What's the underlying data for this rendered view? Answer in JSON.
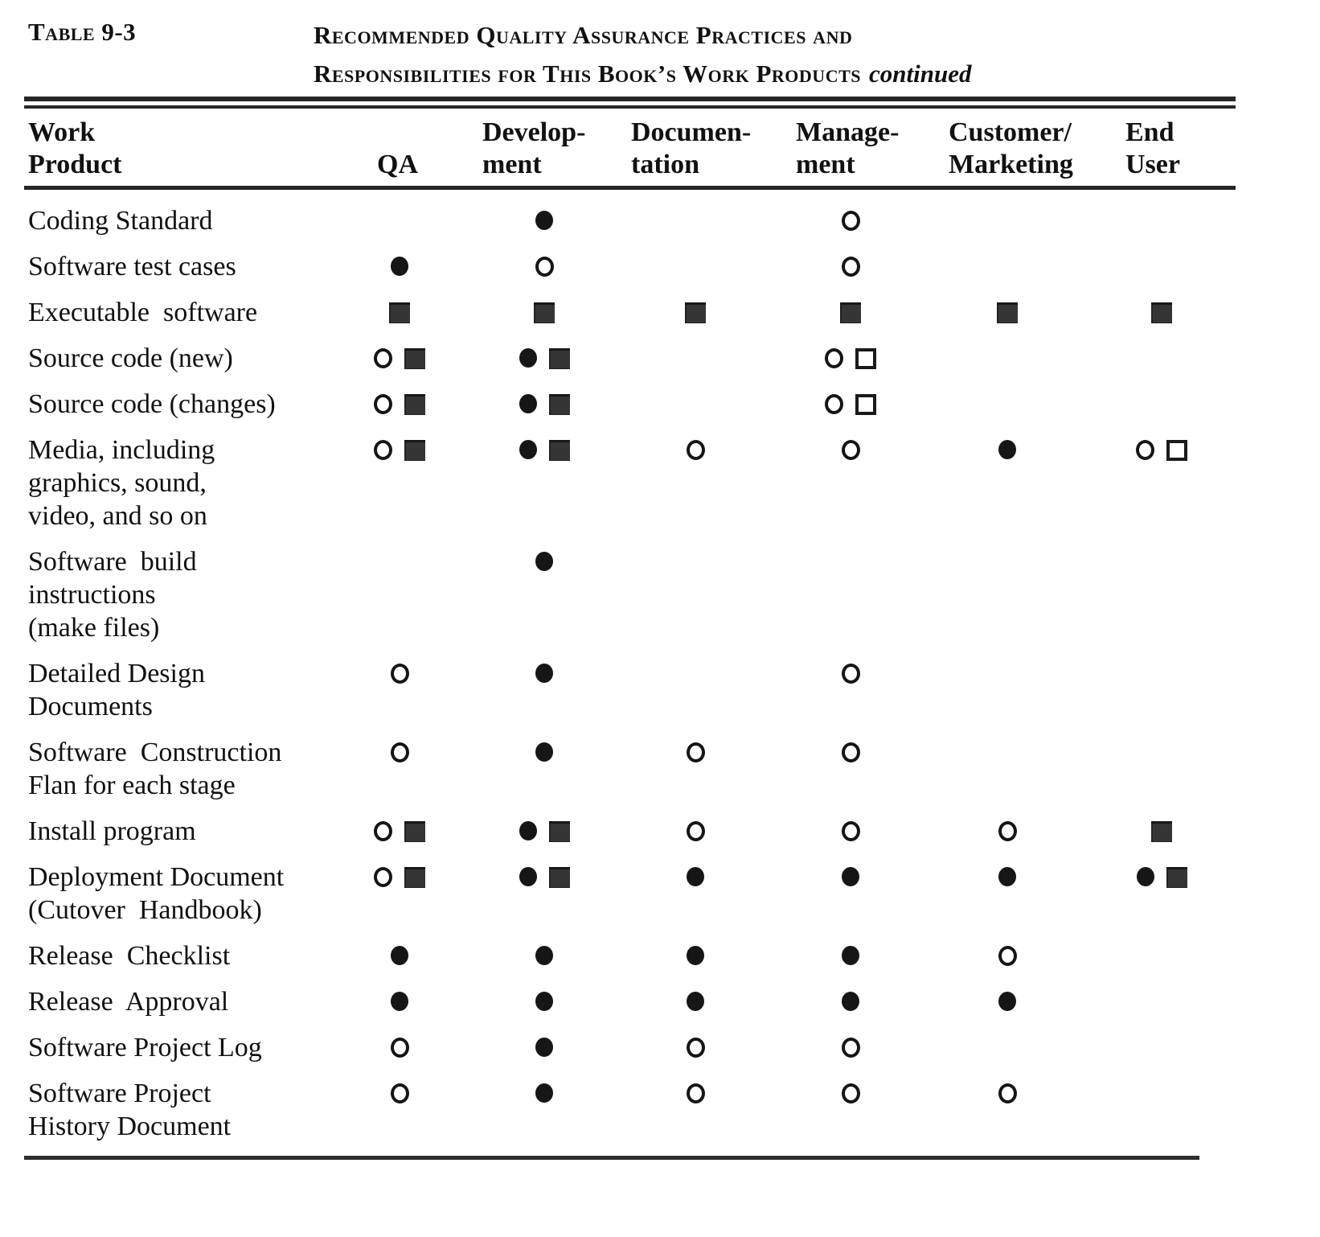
{
  "document": {
    "table_label": "Table 9-3",
    "title_line1": "Recommended Quality Assurance Practices and",
    "title_line2": "Responsibilities for This Book’s Work Products",
    "title_suffix": "continued"
  },
  "symbols": {
    "oc": "open-circle",
    "fc": "filled-circle",
    "fs": "filled-square",
    "os": "open-square"
  },
  "columns": [
    {
      "line1": "Work",
      "line2": "Product"
    },
    {
      "line1": "",
      "line2": "QA"
    },
    {
      "line1": "Develop-",
      "line2": "ment"
    },
    {
      "line1": "Documen-",
      "line2": "tation"
    },
    {
      "line1": "Manage-",
      "line2": "ment"
    },
    {
      "line1": "Customer/",
      "line2": "Marketing"
    },
    {
      "line1": "End",
      "line2": "User"
    }
  ],
  "rows": [
    {
      "lines": [
        "Coding Standard"
      ],
      "cells": [
        [],
        [
          "fc"
        ],
        [],
        [
          "oc"
        ],
        [],
        []
      ]
    },
    {
      "lines": [
        "Software test cases"
      ],
      "cells": [
        [
          "fc"
        ],
        [
          "oc"
        ],
        [],
        [
          "oc"
        ],
        [],
        []
      ]
    },
    {
      "lines": [
        "Executable  software"
      ],
      "cells": [
        [
          "fs"
        ],
        [
          "fs"
        ],
        [
          "fs"
        ],
        [
          "fs"
        ],
        [
          "fs"
        ],
        [
          "fs"
        ]
      ]
    },
    {
      "lines": [
        "Source code (new)"
      ],
      "cells": [
        [
          "oc",
          "fs"
        ],
        [
          "fc",
          "fs"
        ],
        [],
        [
          "oc",
          "os"
        ],
        [],
        []
      ]
    },
    {
      "lines": [
        "Source code (changes)"
      ],
      "cells": [
        [
          "oc",
          "fs"
        ],
        [
          "fc",
          "fs"
        ],
        [],
        [
          "oc",
          "os"
        ],
        [],
        []
      ]
    },
    {
      "lines": [
        "Media, including",
        "graphics, sound,",
        "video, and so on"
      ],
      "cells": [
        [
          "oc",
          "fs"
        ],
        [
          "fc",
          "fs"
        ],
        [
          "oc"
        ],
        [
          "oc"
        ],
        [
          "fc"
        ],
        [
          "oc",
          "os"
        ]
      ]
    },
    {
      "lines": [
        "Software  build",
        "instructions",
        "(make files)"
      ],
      "cells": [
        [],
        [
          "fc"
        ],
        [],
        [],
        [],
        []
      ]
    },
    {
      "lines": [
        "Detailed Design",
        "Documents"
      ],
      "cells": [
        [
          "oc"
        ],
        [
          "fc"
        ],
        [],
        [
          "oc"
        ],
        [],
        []
      ]
    },
    {
      "lines": [
        "Software  Construction",
        "Flan for each stage"
      ],
      "cells": [
        [
          "oc"
        ],
        [
          "fc"
        ],
        [
          "oc"
        ],
        [
          "oc"
        ],
        [],
        []
      ]
    },
    {
      "lines": [
        "Install program"
      ],
      "cells": [
        [
          "oc",
          "fs"
        ],
        [
          "fc",
          "fs"
        ],
        [
          "oc"
        ],
        [
          "oc"
        ],
        [
          "oc"
        ],
        [
          "fs"
        ]
      ]
    },
    {
      "lines": [
        "Deployment Document",
        "(Cutover  Handbook)"
      ],
      "cells": [
        [
          "oc",
          "fs"
        ],
        [
          "fc",
          "fs"
        ],
        [
          "fc"
        ],
        [
          "fc"
        ],
        [
          "fc"
        ],
        [
          "fc",
          "fs"
        ]
      ]
    },
    {
      "lines": [
        "Release  Checklist"
      ],
      "cells": [
        [
          "fc"
        ],
        [
          "fc"
        ],
        [
          "fc"
        ],
        [
          "fc"
        ],
        [
          "oc"
        ],
        []
      ]
    },
    {
      "lines": [
        "Release  Approval"
      ],
      "cells": [
        [
          "fc"
        ],
        [
          "fc"
        ],
        [
          "fc"
        ],
        [
          "fc"
        ],
        [
          "fc"
        ],
        []
      ]
    },
    {
      "lines": [
        "Software Project Log"
      ],
      "cells": [
        [
          "oc"
        ],
        [
          "fc"
        ],
        [
          "oc"
        ],
        [
          "oc"
        ],
        [],
        []
      ]
    },
    {
      "lines": [
        "Software Project",
        "History Document"
      ],
      "cells": [
        [
          "oc"
        ],
        [
          "fc"
        ],
        [
          "oc"
        ],
        [
          "oc"
        ],
        [
          "oc"
        ],
        []
      ]
    }
  ]
}
